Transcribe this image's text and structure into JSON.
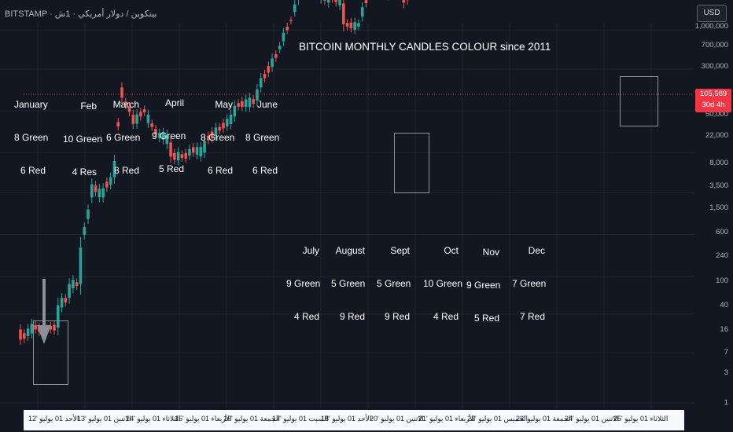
{
  "header": {
    "symbol_line": "BITSTAMP · بيتكوين / دولار أمريكي · 1ش",
    "currency_button": "USD"
  },
  "price_tag": {
    "price": "105,589",
    "countdown": "30d 4h"
  },
  "chart_data": {
    "type": "candlestick",
    "title": "BITCOIN MONTHLY CANDLES COLOUR since 2011",
    "y_scale": "log",
    "ylim": [
      0.8,
      2000000
    ],
    "y_ticks": [
      "1,000,000",
      "700,000",
      "300,000",
      "105,589",
      "50,000",
      "22,000",
      "8,000",
      "3,500",
      "1,500",
      "600",
      "240",
      "100",
      "40",
      "16",
      "7",
      "3",
      "1"
    ],
    "x_ticks": [
      "الأحد 01 يوليو '12",
      "الاثنين 01 يوليو '13",
      "الثلاثاء 01 يوليو '14",
      "الأربعاء 01 يوليو '15",
      "الجمعة 01 يوليو '16",
      "السبت 01 يوليو '17",
      "الأحد 01 يوليو '18",
      "الاثنين 01 يوليو '20",
      "الأربعاء 01 يوليو '21",
      "الخميس 01 يوليو '22",
      "الجمعة 01 يوليو '23",
      "الاثنين 01 يوليو '24",
      "الثلاثاء 01 يوليو '25"
    ],
    "colors": {
      "up": "#26a69a",
      "down": "#ef5350",
      "annotation_box": "#8f9097",
      "arrow": "#8c8f99"
    },
    "grid": true,
    "annotations": [
      {
        "month": "January",
        "green": "8 Green",
        "red": "6 Red"
      },
      {
        "month": "Feb",
        "green": "10 Green",
        "red": "4 Res"
      },
      {
        "month": "March",
        "green": "6 Green",
        "red": "8 Red"
      },
      {
        "month": "April",
        "green": "9 Green",
        "red": "5 Red"
      },
      {
        "month": "May",
        "green": "8 Green",
        "red": "6 Red"
      },
      {
        "month": "June",
        "green": "8 Green",
        "red": "6 Red"
      },
      {
        "month": "July",
        "green": "9 Green",
        "red": "4 Red"
      },
      {
        "month": "August",
        "green": "5 Green",
        "red": "9 Red"
      },
      {
        "month": "Sept",
        "green": "5 Green",
        "red": "9 Red"
      },
      {
        "month": "Oct",
        "green": "10 Green",
        "red": "4 Red"
      },
      {
        "month": "Nov",
        "green": "9 Green",
        "red": "5 Red"
      },
      {
        "month": "Dec",
        "green": "7 Green",
        "red": "7 Red"
      }
    ],
    "series": [
      {
        "date": "2011-09",
        "open": 5.0,
        "close": 4.0
      },
      {
        "date": "2012-01",
        "open": 5.5,
        "close": 5.0
      },
      {
        "date": "2012-04",
        "open": 5.0,
        "close": 5.2
      },
      {
        "date": "2012-07",
        "open": 5.2,
        "close": 8.5
      },
      {
        "date": "2012-10",
        "open": 10.0,
        "close": 13.5
      },
      {
        "date": "2013-01",
        "open": 13.5,
        "close": 30
      },
      {
        "date": "2013-04",
        "open": 90,
        "close": 120
      },
      {
        "date": "2013-07",
        "open": 90,
        "close": 110
      },
      {
        "date": "2013-10",
        "open": 140,
        "close": 200
      },
      {
        "date": "2013-12",
        "open": 1000,
        "close": 800
      },
      {
        "date": "2014-03",
        "open": 550,
        "close": 450
      },
      {
        "date": "2014-06",
        "open": 620,
        "close": 580
      },
      {
        "date": "2014-10",
        "open": 330,
        "close": 370
      },
      {
        "date": "2015-01",
        "open": 300,
        "close": 220
      },
      {
        "date": "2015-06",
        "open": 225,
        "close": 260
      },
      {
        "date": "2015-10",
        "open": 240,
        "close": 310
      },
      {
        "date": "2016-06",
        "open": 530,
        "close": 670
      },
      {
        "date": "2016-12",
        "open": 750,
        "close": 960
      },
      {
        "date": "2017-06",
        "open": 2300,
        "close": 2500
      },
      {
        "date": "2017-09",
        "open": 4400,
        "close": 4300
      },
      {
        "date": "2017-12",
        "open": 10000,
        "close": 14000
      },
      {
        "date": "2018-02",
        "open": 10000,
        "close": 10300
      },
      {
        "date": "2018-07",
        "open": 6400,
        "close": 7700
      },
      {
        "date": "2018-11",
        "open": 6300,
        "close": 4000
      },
      {
        "date": "2019-03",
        "open": 3800,
        "close": 4100
      },
      {
        "date": "2019-06",
        "open": 8500,
        "close": 10800
      },
      {
        "date": "2019-09",
        "open": 9600,
        "close": 8300
      },
      {
        "date": "2020-03",
        "open": 8500,
        "close": 6400
      },
      {
        "date": "2020-06",
        "open": 9400,
        "close": 9100
      },
      {
        "date": "2020-09",
        "open": 11600,
        "close": 10800
      },
      {
        "date": "2020-12",
        "open": 19700,
        "close": 29000
      },
      {
        "date": "2021-03",
        "open": 45000,
        "close": 58800
      },
      {
        "date": "2021-06",
        "open": 36700,
        "close": 35000
      },
      {
        "date": "2021-10",
        "open": 43800,
        "close": 61300
      },
      {
        "date": "2022-01",
        "open": 46200,
        "close": 38500
      },
      {
        "date": "2022-06",
        "open": 31800,
        "close": 19900
      },
      {
        "date": "2022-11",
        "open": 20500,
        "close": 17200
      },
      {
        "date": "2023-03",
        "open": 23100,
        "close": 28500
      },
      {
        "date": "2023-08",
        "open": 29200,
        "close": 25900
      },
      {
        "date": "2023-12",
        "open": 37700,
        "close": 42300
      },
      {
        "date": "2024-03",
        "open": 61100,
        "close": 71300
      },
      {
        "date": "2024-08",
        "open": 64600,
        "close": 58900
      },
      {
        "date": "2024-11",
        "open": 70200,
        "close": 96400
      },
      {
        "date": "2025-02",
        "open": 102400,
        "close": 84300
      },
      {
        "date": "2025-05",
        "open": 94200,
        "close": 104600
      },
      {
        "date": "2025-07",
        "open": 107000,
        "close": 105589
      }
    ]
  }
}
